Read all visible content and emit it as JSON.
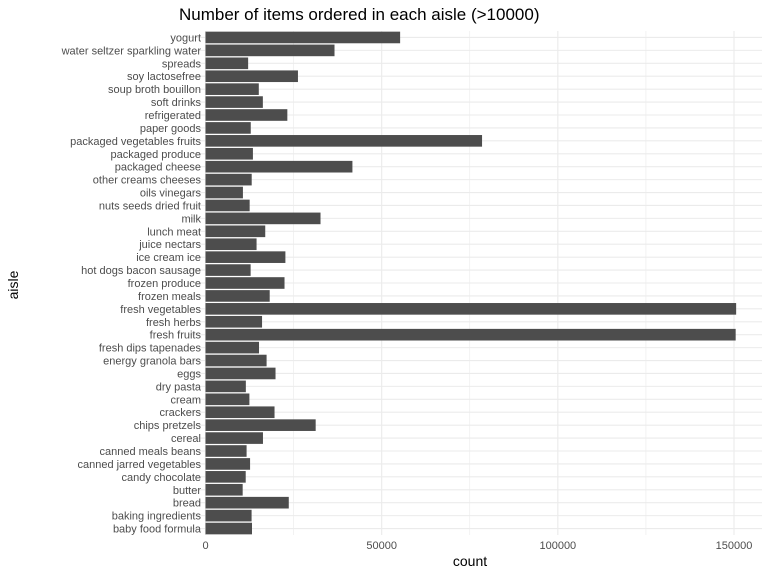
{
  "chart_data": {
    "type": "bar",
    "orientation": "horizontal",
    "title": "Number of items ordered in each aisle (>10000)",
    "xlabel": "count",
    "ylabel": "aisle",
    "xlim": [
      0,
      155000
    ],
    "x_ticks": [
      0,
      50000,
      100000,
      150000
    ],
    "x_tick_labels": [
      "0",
      "50000",
      "100000",
      "150000"
    ],
    "grid": true,
    "bar_color": "#4d4d4d",
    "grid_color": "#ebebeb",
    "categories": [
      "yogurt",
      "water seltzer sparkling water",
      "spreads",
      "soy lactosefree",
      "soup broth bouillon",
      "soft drinks",
      "refrigerated",
      "paper goods",
      "packaged vegetables fruits",
      "packaged produce",
      "packaged cheese",
      "other creams cheeses",
      "oils vinegars",
      "nuts seeds dried fruit",
      "milk",
      "lunch meat",
      "juice nectars",
      "ice cream ice",
      "hot dogs bacon sausage",
      "frozen produce",
      "frozen meals",
      "fresh vegetables",
      "fresh herbs",
      "fresh fruits",
      "fresh dips tapenades",
      "energy granola bars",
      "eggs",
      "dry pasta",
      "cream",
      "crackers",
      "chips pretzels",
      "cereal",
      "canned meals beans",
      "canned jarred vegetables",
      "candy chocolate",
      "butter",
      "bread",
      "baking ingredients",
      "baby food formula"
    ],
    "values": [
      55240,
      36617,
      12102,
      26240,
      15126,
      16279,
      23228,
      12844,
      78493,
      13460,
      41699,
      13113,
      10623,
      12532,
      32644,
      16957,
      14495,
      22676,
      12810,
      22428,
      18221,
      150609,
      16052,
      150473,
      15188,
      17340,
      19875,
      11452,
      12458,
      19592,
      31269,
      16310,
      11664,
      12652,
      11413,
      10551,
      23635,
      13080,
      13198
    ]
  }
}
